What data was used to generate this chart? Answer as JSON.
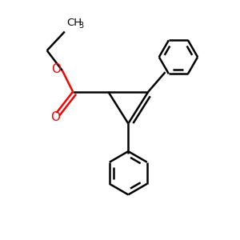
{
  "background_color": "#ffffff",
  "bond_color": "#000000",
  "oxygen_color": "#ff0000",
  "line_width": 1.8,
  "figsize": [
    3.0,
    3.0
  ],
  "dpi": 100,
  "xlim": [
    0,
    10
  ],
  "ylim": [
    0,
    10
  ]
}
